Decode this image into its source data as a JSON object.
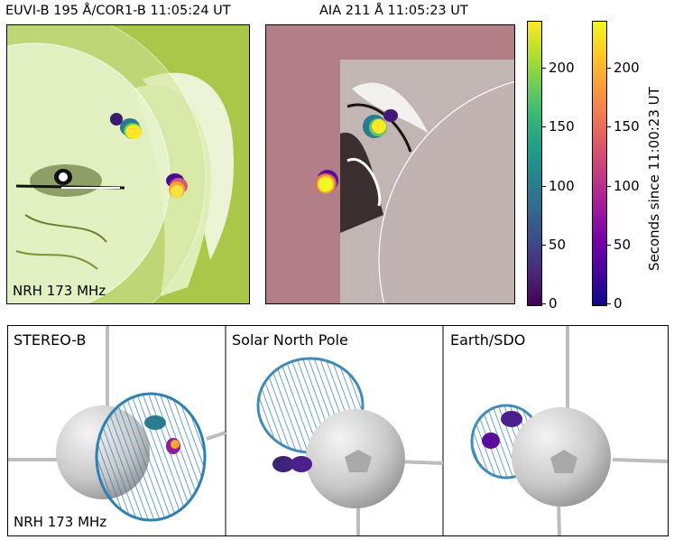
{
  "top_left": {
    "title": "EUVI-B 195 Å/COR1-B 11:05:24 UT",
    "label": "NRH 173 MHz"
  },
  "top_middle": {
    "title": "AIA 211 Å 11:05:23 UT"
  },
  "colorbar_viridis": {
    "ticks": [
      "0",
      "50",
      "100",
      "150",
      "200"
    ]
  },
  "colorbar_plasma": {
    "ticks": [
      "0",
      "50",
      "100",
      "150",
      "200"
    ],
    "label": "Seconds since 11:00:23 UT"
  },
  "bottom": {
    "panel1_label": "STEREO-B",
    "panel1_sublabel": "NRH 173 MHz",
    "panel2_label": "Solar North Pole",
    "panel3_label": "Earth/SDO"
  },
  "colors": {
    "euvi_bg": "#a9c84a",
    "aia_bg": "#b27f87",
    "mesh": "#2f7fb0"
  },
  "icons": [
    "sphere-icon",
    "pentagon-icon"
  ]
}
